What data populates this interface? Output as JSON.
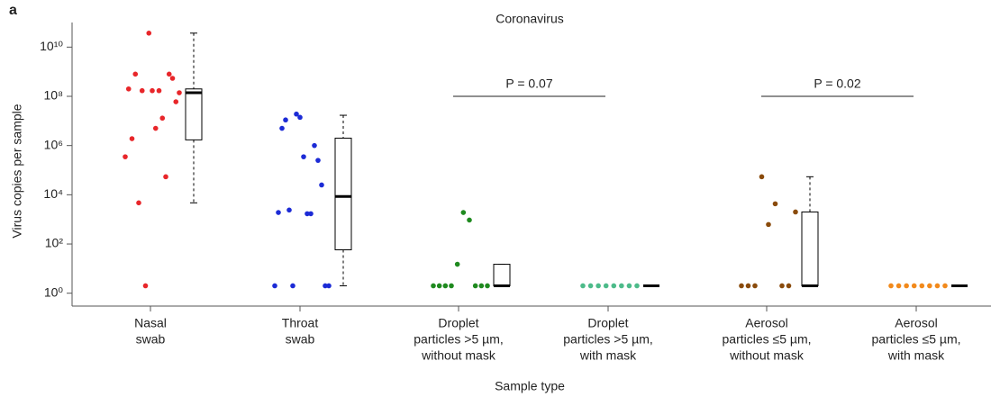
{
  "chart_data": {
    "type": "box",
    "panel_label": "a",
    "title": "Coronavirus",
    "xlabel": "Sample type",
    "ylabel": "Virus copies per sample",
    "log_y": true,
    "ylim": [
      0.3,
      100000000000
    ],
    "yticks": [
      {
        "value": 1,
        "label": "10⁰"
      },
      {
        "value": 100,
        "label": "10²"
      },
      {
        "value": 10000,
        "label": "10⁴"
      },
      {
        "value": 1000000,
        "label": "10⁶"
      },
      {
        "value": 100000000,
        "label": "10⁸"
      },
      {
        "value": 10000000000,
        "label": "10¹⁰"
      }
    ],
    "categories": [
      [
        "Nasal",
        "swab"
      ],
      [
        "Throat",
        "swab"
      ],
      [
        "Droplet",
        "particles >5 µm,",
        "without mask"
      ],
      [
        "Droplet",
        "particles >5 µm,",
        "with mask"
      ],
      [
        "Aerosol",
        "particles ≤5 µm,",
        "without mask"
      ],
      [
        "Aerosol",
        "particles ≤5 µm,",
        "with mask"
      ]
    ],
    "groups": [
      {
        "color": "#e8262a",
        "values": [
          350000,
          200000000,
          1900000,
          800000000,
          4700,
          170000000,
          2,
          37000000000,
          170000000,
          5000000,
          170000000,
          13000000,
          54000,
          800000000,
          540000000,
          60000000,
          140000000
        ],
        "box": {
          "whislo": 4700,
          "q1": 1700000,
          "med": 140000000,
          "q3": 200000000,
          "whishi": 37000000000
        }
      },
      {
        "color": "#1c2bd6",
        "values": [
          2,
          1900,
          5000000,
          11000000,
          2400,
          2,
          19000000,
          14000000,
          350000,
          1700,
          1700,
          1000000,
          250000,
          25000,
          2,
          2
        ],
        "box": {
          "whislo": 2,
          "q1": 58,
          "med": 8500,
          "q3": 2000000,
          "whishi": 17000000
        }
      },
      {
        "color": "#1f8a1f",
        "values": [
          2,
          2,
          2,
          2,
          15,
          1900,
          940,
          2,
          2,
          2
        ],
        "box": {
          "whislo": 2,
          "q1": 2,
          "med": 2,
          "q3": 15,
          "whishi": 15
        }
      },
      {
        "color": "#4dbb8a",
        "values": [
          2,
          2,
          2,
          2,
          2,
          2,
          2,
          2
        ],
        "box": {
          "whislo": 2,
          "q1": 2,
          "med": 2,
          "q3": 2,
          "whishi": 2
        }
      },
      {
        "color": "#8a4b0c",
        "values": [
          2,
          2,
          2,
          54000,
          620,
          4300,
          2,
          2,
          2000
        ],
        "box": {
          "whislo": 2,
          "q1": 2,
          "med": 2,
          "q3": 2000,
          "whishi": 54000
        }
      },
      {
        "color": "#f28a1c",
        "values": [
          2,
          2,
          2,
          2,
          2,
          2,
          2,
          2
        ],
        "box": {
          "whislo": 2,
          "q1": 2,
          "med": 2,
          "q3": 2,
          "whishi": 2
        }
      }
    ],
    "annotations": [
      {
        "text": "P = 0.07",
        "between": [
          2,
          3
        ],
        "y": 100000000
      },
      {
        "text": "P = 0.02",
        "between": [
          4,
          5
        ],
        "y": 100000000
      }
    ]
  }
}
